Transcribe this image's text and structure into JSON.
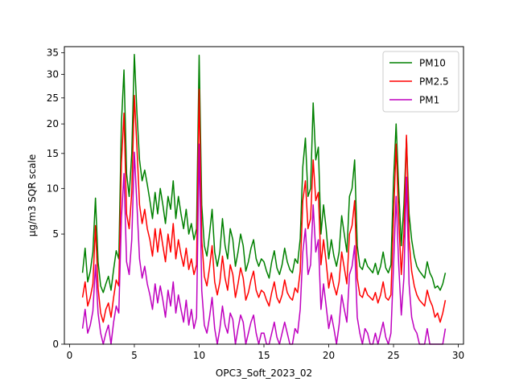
{
  "chart_data": {
    "type": "line",
    "title": "",
    "xlabel": "OPC3_Soft_2023_02",
    "ylabel": "µg/m3 SQR scale",
    "y_scale": "sqrt",
    "xlim": [
      -0.4,
      30.4
    ],
    "ylim": [
      0,
      36.5
    ],
    "x_ticks": [
      0,
      5,
      10,
      15,
      20,
      25,
      30
    ],
    "y_ticks": [
      0,
      5,
      10,
      15,
      20,
      25,
      30,
      35
    ],
    "grid": false,
    "legend_position": "top-right",
    "colors": {
      "PM10": "#008000",
      "PM2.5": "#ff0000",
      "PM1": "#bf00bf"
    },
    "series": [
      {
        "name": "PM10",
        "x": [
          1.0,
          1.2,
          1.4,
          1.6,
          1.8,
          2.0,
          2.2,
          2.4,
          2.6,
          2.8,
          3.0,
          3.2,
          3.4,
          3.6,
          3.8,
          4.0,
          4.2,
          4.4,
          4.6,
          4.8,
          5.0,
          5.2,
          5.4,
          5.6,
          5.8,
          6.0,
          6.2,
          6.4,
          6.6,
          6.8,
          7.0,
          7.2,
          7.4,
          7.6,
          7.8,
          8.0,
          8.2,
          8.4,
          8.6,
          8.8,
          9.0,
          9.2,
          9.4,
          9.6,
          9.8,
          10.0,
          10.2,
          10.4,
          10.6,
          10.8,
          11.0,
          11.2,
          11.4,
          11.6,
          11.8,
          12.0,
          12.2,
          12.4,
          12.6,
          12.8,
          13.0,
          13.2,
          13.4,
          13.6,
          13.8,
          14.0,
          14.2,
          14.4,
          14.6,
          14.8,
          15.0,
          15.2,
          15.4,
          15.6,
          15.8,
          16.0,
          16.2,
          16.4,
          16.6,
          16.8,
          17.0,
          17.2,
          17.4,
          17.6,
          17.8,
          18.0,
          18.2,
          18.4,
          18.6,
          18.8,
          19.0,
          19.2,
          19.4,
          19.6,
          19.8,
          20.0,
          20.2,
          20.4,
          20.6,
          20.8,
          21.0,
          21.2,
          21.4,
          21.6,
          21.8,
          22.0,
          22.2,
          22.4,
          22.6,
          22.8,
          23.0,
          23.2,
          23.4,
          23.6,
          23.8,
          24.0,
          24.2,
          24.4,
          24.6,
          24.8,
          25.0,
          25.2,
          25.4,
          25.6,
          25.8,
          26.0,
          26.2,
          26.4,
          26.6,
          26.8,
          27.0,
          27.2,
          27.4,
          27.6,
          27.8,
          28.0,
          28.2,
          28.4,
          28.6,
          28.8,
          29.0
        ],
        "values": [
          2.1,
          3.8,
          1.6,
          2.2,
          3.5,
          8.8,
          2.8,
          1.4,
          1.1,
          1.5,
          1.9,
          1.2,
          2.3,
          3.6,
          3.0,
          20.0,
          31.0,
          12.0,
          9.0,
          15.0,
          34.6,
          22.0,
          14.0,
          11.0,
          12.5,
          10.5,
          8.5,
          6.5,
          9.5,
          7.0,
          10.0,
          8.0,
          6.0,
          9.0,
          7.5,
          11.0,
          6.5,
          9.0,
          7.0,
          5.5,
          7.5,
          5.0,
          6.0,
          4.5,
          5.5,
          34.4,
          8.0,
          4.0,
          3.2,
          5.0,
          7.5,
          3.5,
          2.5,
          3.5,
          6.5,
          4.0,
          3.0,
          5.5,
          4.5,
          2.5,
          3.5,
          5.0,
          4.0,
          2.2,
          2.8,
          3.8,
          4.5,
          3.0,
          2.5,
          3.0,
          2.8,
          2.2,
          1.8,
          2.8,
          3.6,
          2.4,
          2.0,
          2.6,
          3.8,
          2.8,
          2.3,
          2.1,
          3.0,
          2.7,
          4.6,
          13.0,
          17.5,
          9.0,
          10.0,
          24.0,
          14.0,
          16.0,
          5.0,
          8.0,
          5.5,
          3.0,
          4.5,
          3.2,
          2.5,
          3.5,
          6.8,
          5.0,
          3.5,
          9.0,
          10.0,
          14.0,
          4.0,
          2.5,
          2.3,
          3.0,
          2.5,
          2.3,
          2.1,
          2.7,
          2.0,
          2.5,
          3.5,
          2.4,
          2.1,
          2.6,
          11.0,
          20.0,
          10.0,
          4.0,
          8.0,
          17.5,
          7.0,
          4.5,
          3.2,
          2.5,
          2.2,
          2.0,
          1.8,
          2.8,
          2.1,
          1.8,
          1.3,
          1.4,
          1.2,
          1.5,
          2.1
        ]
      },
      {
        "name": "PM2.5",
        "x": [
          1.0,
          1.2,
          1.4,
          1.6,
          1.8,
          2.0,
          2.2,
          2.4,
          2.6,
          2.8,
          3.0,
          3.2,
          3.4,
          3.6,
          3.8,
          4.0,
          4.2,
          4.4,
          4.6,
          4.8,
          5.0,
          5.2,
          5.4,
          5.6,
          5.8,
          6.0,
          6.2,
          6.4,
          6.6,
          6.8,
          7.0,
          7.2,
          7.4,
          7.6,
          7.8,
          8.0,
          8.2,
          8.4,
          8.6,
          8.8,
          9.0,
          9.2,
          9.4,
          9.6,
          9.8,
          10.0,
          10.2,
          10.4,
          10.6,
          10.8,
          11.0,
          11.2,
          11.4,
          11.6,
          11.8,
          12.0,
          12.2,
          12.4,
          12.6,
          12.8,
          13.0,
          13.2,
          13.4,
          13.6,
          13.8,
          14.0,
          14.2,
          14.4,
          14.6,
          14.8,
          15.0,
          15.2,
          15.4,
          15.6,
          15.8,
          16.0,
          16.2,
          16.4,
          16.6,
          16.8,
          17.0,
          17.2,
          17.4,
          17.6,
          17.8,
          18.0,
          18.2,
          18.4,
          18.6,
          18.8,
          19.0,
          19.2,
          19.4,
          19.6,
          19.8,
          20.0,
          20.2,
          20.4,
          20.6,
          20.8,
          21.0,
          21.2,
          21.4,
          21.6,
          21.8,
          22.0,
          22.2,
          22.4,
          22.6,
          22.8,
          23.0,
          23.2,
          23.4,
          23.6,
          23.8,
          24.0,
          24.2,
          24.4,
          24.6,
          24.8,
          25.0,
          25.2,
          25.4,
          25.6,
          25.8,
          26.0,
          26.2,
          26.4,
          26.6,
          26.8,
          27.0,
          27.2,
          27.4,
          27.6,
          27.8,
          28.0,
          28.2,
          28.4,
          28.6,
          28.8,
          29.0
        ],
        "values": [
          0.9,
          1.6,
          0.6,
          0.9,
          1.5,
          5.8,
          1.3,
          0.4,
          0.2,
          0.5,
          0.7,
          0.3,
          0.9,
          1.7,
          1.4,
          13.5,
          22.0,
          7.0,
          5.5,
          9.5,
          25.5,
          16.0,
          8.0,
          6.0,
          7.5,
          5.5,
          4.5,
          3.2,
          5.5,
          3.5,
          5.5,
          4.0,
          2.8,
          5.0,
          3.5,
          6.0,
          3.0,
          4.5,
          3.3,
          2.5,
          3.8,
          2.3,
          3.0,
          2.0,
          2.6,
          26.8,
          4.5,
          1.9,
          1.4,
          2.4,
          4.0,
          1.6,
          1.0,
          1.6,
          3.2,
          1.8,
          1.2,
          2.6,
          2.0,
          0.9,
          1.5,
          2.4,
          1.8,
          0.8,
          1.1,
          1.7,
          2.2,
          1.2,
          0.9,
          1.2,
          1.1,
          0.8,
          0.6,
          1.1,
          1.6,
          0.9,
          0.7,
          1.0,
          1.7,
          1.1,
          0.9,
          0.8,
          1.3,
          1.1,
          2.2,
          8.5,
          11.0,
          5.5,
          6.5,
          14.0,
          8.5,
          9.5,
          2.6,
          4.5,
          2.8,
          1.3,
          2.1,
          1.4,
          1.0,
          1.6,
          3.5,
          2.4,
          1.5,
          5.0,
          5.8,
          8.5,
          1.8,
          1.0,
          0.9,
          1.3,
          1.0,
          0.9,
          0.8,
          1.1,
          0.7,
          1.0,
          1.6,
          0.9,
          0.8,
          1.0,
          6.5,
          16.5,
          6.5,
          2.0,
          5.0,
          18.0,
          4.5,
          2.2,
          1.4,
          1.0,
          0.8,
          0.7,
          0.6,
          1.2,
          0.8,
          0.6,
          0.3,
          0.4,
          0.2,
          0.4,
          0.8
        ]
      },
      {
        "name": "PM1",
        "x": [
          1.0,
          1.2,
          1.4,
          1.6,
          1.8,
          2.0,
          2.2,
          2.4,
          2.6,
          2.8,
          3.0,
          3.2,
          3.4,
          3.6,
          3.8,
          4.0,
          4.2,
          4.4,
          4.6,
          4.8,
          5.0,
          5.2,
          5.4,
          5.6,
          5.8,
          6.0,
          6.2,
          6.4,
          6.6,
          6.8,
          7.0,
          7.2,
          7.4,
          7.6,
          7.8,
          8.0,
          8.2,
          8.4,
          8.6,
          8.8,
          9.0,
          9.2,
          9.4,
          9.6,
          9.8,
          10.0,
          10.2,
          10.4,
          10.6,
          10.8,
          11.0,
          11.2,
          11.4,
          11.6,
          11.8,
          12.0,
          12.2,
          12.4,
          12.6,
          12.8,
          13.0,
          13.2,
          13.4,
          13.6,
          13.8,
          14.0,
          14.2,
          14.4,
          14.6,
          14.8,
          15.0,
          15.2,
          15.4,
          15.6,
          15.8,
          16.0,
          16.2,
          16.4,
          16.6,
          16.8,
          17.0,
          17.2,
          17.4,
          17.6,
          17.8,
          18.0,
          18.2,
          18.4,
          18.6,
          18.8,
          19.0,
          19.2,
          19.4,
          19.6,
          19.8,
          20.0,
          20.2,
          20.4,
          20.6,
          20.8,
          21.0,
          21.2,
          21.4,
          21.6,
          21.8,
          22.0,
          22.2,
          22.4,
          22.6,
          22.8,
          23.0,
          23.2,
          23.4,
          23.6,
          23.8,
          24.0,
          24.2,
          24.4,
          24.6,
          24.8,
          25.0,
          25.2,
          25.4,
          25.6,
          25.8,
          26.0,
          26.2,
          26.4,
          26.6,
          26.8,
          27.0,
          27.2,
          27.4,
          27.6,
          27.8,
          28.0,
          28.2,
          28.4,
          28.6,
          28.8,
          29.0
        ],
        "values": [
          0.1,
          0.5,
          0.05,
          0.15,
          0.45,
          2.6,
          0.4,
          0.05,
          0.0,
          0.05,
          0.15,
          0.0,
          0.2,
          0.6,
          0.4,
          6.5,
          12.0,
          2.8,
          2.0,
          4.5,
          15.2,
          8.0,
          3.0,
          1.8,
          2.5,
          1.5,
          1.0,
          0.5,
          1.5,
          0.7,
          1.4,
          0.8,
          0.3,
          1.2,
          0.6,
          1.6,
          0.4,
          1.0,
          0.5,
          0.2,
          0.8,
          0.15,
          0.5,
          0.1,
          0.3,
          16.5,
          1.2,
          0.15,
          0.05,
          0.3,
          0.9,
          0.1,
          0.0,
          0.1,
          0.6,
          0.15,
          0.05,
          0.4,
          0.25,
          0.0,
          0.1,
          0.35,
          0.2,
          0.0,
          0.05,
          0.2,
          0.35,
          0.05,
          0.0,
          0.05,
          0.05,
          0.0,
          0.0,
          0.05,
          0.2,
          0.02,
          0.0,
          0.05,
          0.2,
          0.05,
          0.0,
          0.0,
          0.1,
          0.05,
          0.5,
          3.5,
          5.5,
          2.0,
          2.6,
          8.0,
          3.5,
          4.5,
          0.5,
          1.5,
          0.6,
          0.1,
          0.35,
          0.1,
          0.0,
          0.15,
          1.0,
          0.5,
          0.2,
          2.0,
          2.5,
          4.0,
          0.3,
          0.05,
          0.0,
          0.1,
          0.05,
          0.0,
          0.0,
          0.05,
          0.0,
          0.05,
          0.2,
          0.02,
          0.0,
          0.05,
          2.5,
          9.0,
          2.6,
          0.35,
          1.8,
          11.5,
          1.5,
          0.3,
          0.1,
          0.05,
          0.0,
          0.0,
          0.0,
          0.1,
          0.0,
          0.0,
          0.0,
          0.0,
          0.0,
          0.0,
          0.1
        ]
      }
    ]
  }
}
